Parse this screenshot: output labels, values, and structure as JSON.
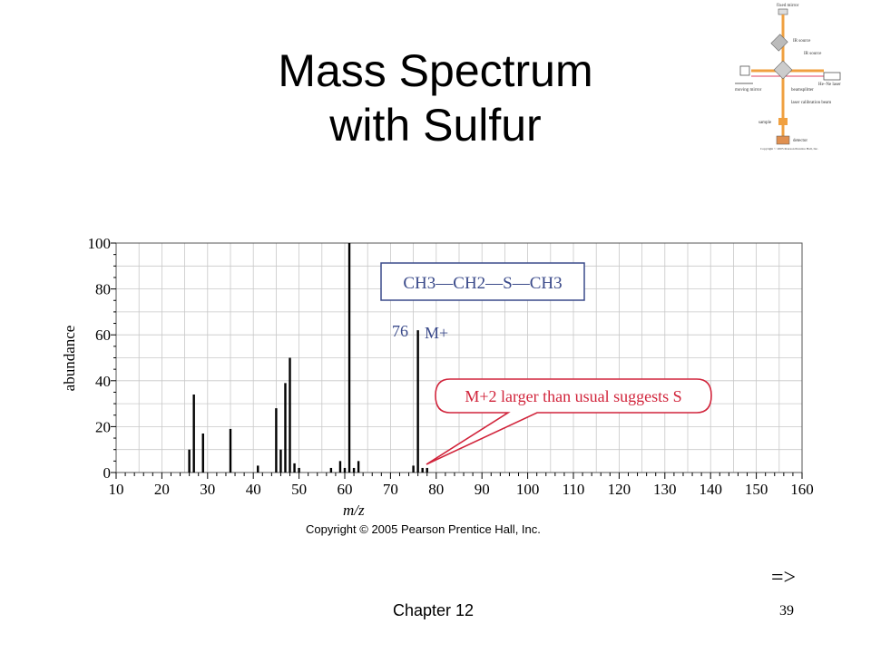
{
  "slide": {
    "title_line1": "Mass Spectrum",
    "title_line2": "with Sulfur",
    "footer": "Chapter 12",
    "page_number": "39",
    "next_arrow": "=>",
    "copyright": "Copyright © 2005 Pearson Prentice Hall, Inc."
  },
  "thumbnail": {
    "labels": {
      "fixed_mirror": "fixed mirror",
      "ir_source": "IR source",
      "ir_source_2": "IR source",
      "he_ne_laser": "He–Ne laser",
      "moving_mirror": "moving mirror",
      "beamsplitter": "beamsplitter",
      "laser_calibration_beam": "laser calibration beam",
      "sample": "sample",
      "detector": "detector",
      "copyright": "Copyright © 2005 Pearson Prentice Hall, Inc."
    }
  },
  "chart_data": {
    "type": "bar",
    "xlabel": "m/z",
    "ylabel": "abundance",
    "xlim": [
      10,
      160
    ],
    "ylim": [
      0,
      100
    ],
    "x_ticks": [
      10,
      20,
      30,
      40,
      50,
      60,
      70,
      80,
      90,
      100,
      110,
      120,
      130,
      140,
      150,
      160
    ],
    "y_ticks": [
      0,
      20,
      40,
      60,
      80,
      100
    ],
    "grid": true,
    "peaks": [
      {
        "mz": 26,
        "abundance": 10
      },
      {
        "mz": 27,
        "abundance": 34
      },
      {
        "mz": 29,
        "abundance": 17
      },
      {
        "mz": 35,
        "abundance": 19
      },
      {
        "mz": 41,
        "abundance": 3
      },
      {
        "mz": 45,
        "abundance": 28
      },
      {
        "mz": 46,
        "abundance": 10
      },
      {
        "mz": 47,
        "abundance": 39
      },
      {
        "mz": 48,
        "abundance": 50
      },
      {
        "mz": 49,
        "abundance": 4
      },
      {
        "mz": 50,
        "abundance": 2
      },
      {
        "mz": 57,
        "abundance": 2
      },
      {
        "mz": 59,
        "abundance": 5
      },
      {
        "mz": 60,
        "abundance": 2
      },
      {
        "mz": 61,
        "abundance": 100
      },
      {
        "mz": 62,
        "abundance": 2
      },
      {
        "mz": 63,
        "abundance": 5
      },
      {
        "mz": 75,
        "abundance": 3
      },
      {
        "mz": 76,
        "abundance": 62
      },
      {
        "mz": 77,
        "abundance": 2
      },
      {
        "mz": 78,
        "abundance": 2
      }
    ],
    "annotations": {
      "structure": "CH3—CH2—S—CH3",
      "molecular_ion_mz": "76",
      "molecular_ion_label": "M+",
      "callout": "M+2 larger than usual suggests S"
    },
    "colors": {
      "callout": "#d1243b",
      "structure_box": "#3a4a8a",
      "bars": "#000000"
    }
  }
}
